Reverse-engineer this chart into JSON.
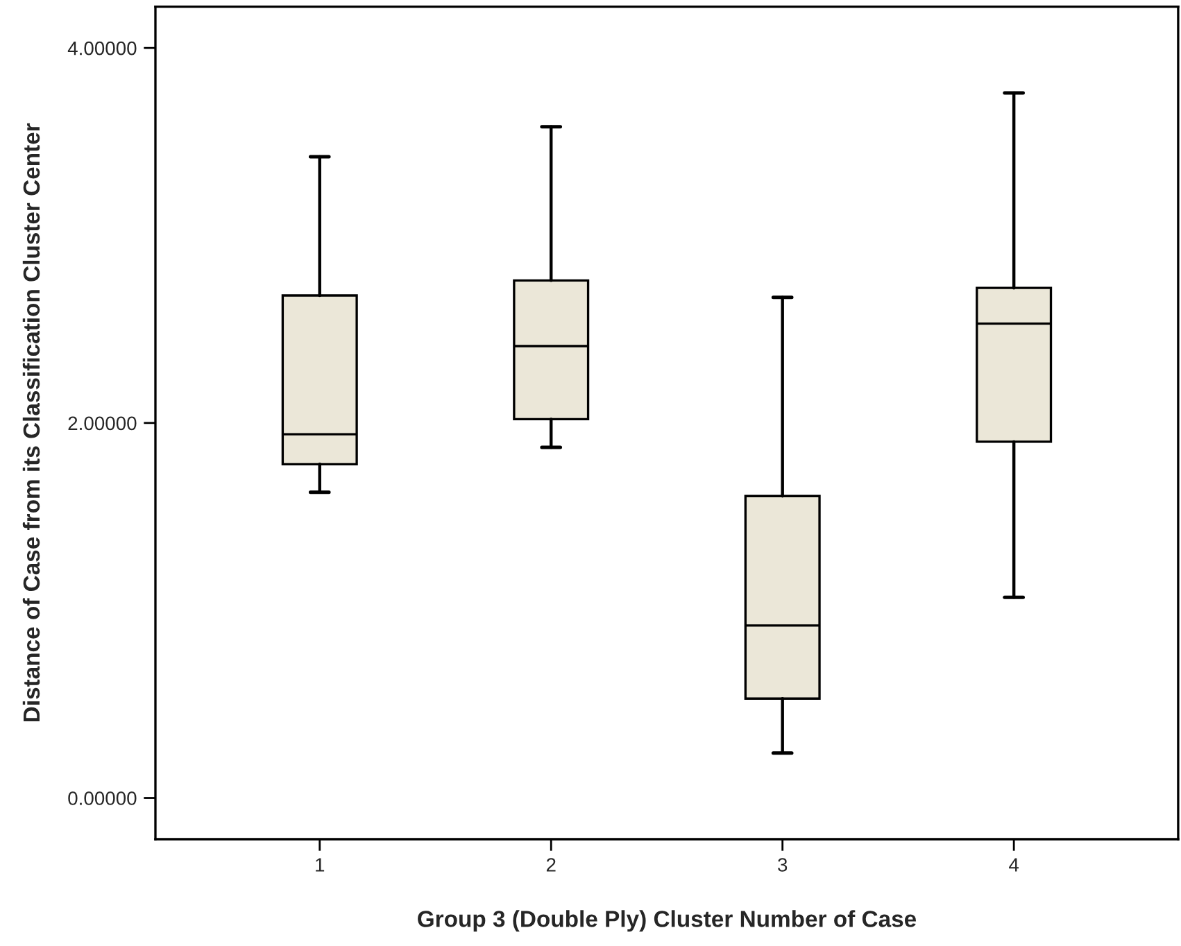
{
  "chart_data": {
    "type": "box",
    "xlabel": "Group 3 (Double Ply) Cluster Number of Case",
    "ylabel": "Distance of Case from its Classification Cluster Center",
    "categories": [
      "1",
      "2",
      "3",
      "4"
    ],
    "series": [
      {
        "color": "#ebe7d8",
        "boxes": [
          {
            "low": 1.63,
            "q1": 1.78,
            "median": 1.94,
            "q3": 2.68,
            "high": 3.42
          },
          {
            "low": 1.87,
            "q1": 2.02,
            "median": 2.41,
            "q3": 2.76,
            "high": 3.58
          },
          {
            "low": 0.24,
            "q1": 0.53,
            "median": 0.92,
            "q3": 1.61,
            "high": 2.67
          },
          {
            "low": 1.07,
            "q1": 1.9,
            "median": 2.53,
            "q3": 2.72,
            "high": 3.76
          }
        ]
      }
    ],
    "ylim": [
      -0.22,
      4.22
    ],
    "yticks": [
      {
        "value": 0,
        "label": "0.00000"
      },
      {
        "value": 2,
        "label": "2.00000"
      },
      {
        "value": 4,
        "label": "4.00000"
      }
    ],
    "grid": false,
    "legend": false
  }
}
